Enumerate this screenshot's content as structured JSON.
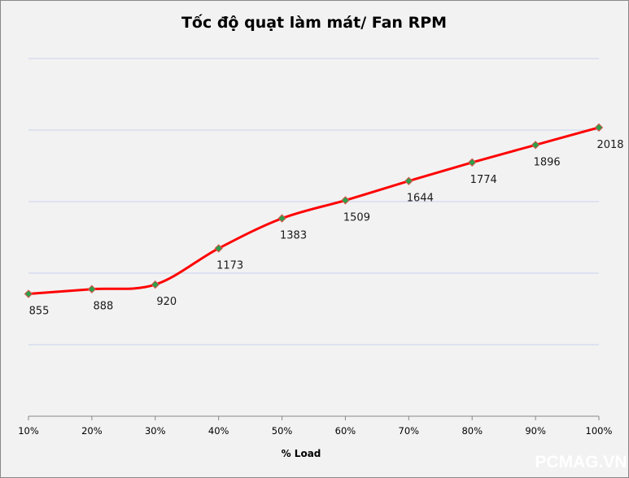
{
  "chart_data": {
    "type": "line",
    "title": "Tốc độ quạt làm mát/ Fan RPM",
    "xlabel": "% Load",
    "ylabel": "",
    "categories": [
      "10%",
      "20%",
      "30%",
      "40%",
      "50%",
      "60%",
      "70%",
      "80%",
      "90%",
      "100%"
    ],
    "series": [
      {
        "name": "Fan RPM",
        "values": [
          855,
          888,
          920,
          1173,
          1383,
          1509,
          1644,
          1774,
          1896,
          2018
        ],
        "color": "#ff0000",
        "marker_color": "#2e9e48"
      }
    ],
    "ylim": [
      0,
      2500
    ],
    "ygrid_step": 500,
    "grid": true,
    "smooth": true,
    "data_labels": true,
    "legend": "none"
  },
  "watermark": "PCMAG.VN"
}
